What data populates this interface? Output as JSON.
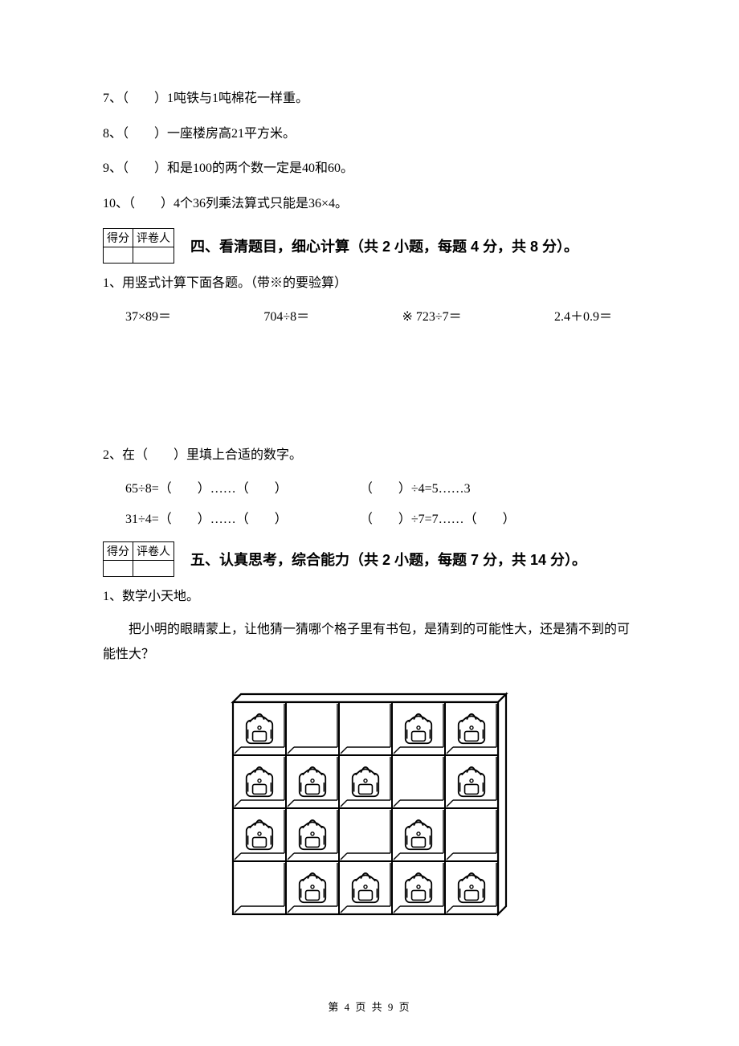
{
  "questions": {
    "q7": "7、（　　）1吨铁与1吨棉花一样重。",
    "q8": "8、（　　）一座楼房高21平方米。",
    "q9": "9、（　　）和是100的两个数一定是40和60。",
    "q10": "10、（　　）4个36列乘法算式只能是36×4。"
  },
  "score_box": {
    "col1": "得分",
    "col2": "评卷人"
  },
  "section4": {
    "title": "四、看清题目，细心计算（共 2 小题，每题 4 分，共 8 分）。",
    "item1": "1、用竖式计算下面各题。（带※的要验算）",
    "calc1": "37×89＝",
    "calc2": "704÷8＝",
    "calc3": "※ 723÷7＝",
    "calc4": "2.4＋0.9＝",
    "item2": "2、在（　　）里填上合适的数字。",
    "fill1": "65÷8=（　　）……（　　）",
    "fill2": "（　　）÷4=5……3",
    "fill3": "31÷4=（　　）……（　　）",
    "fill4": "（　　）÷7=7……（　　）"
  },
  "section5": {
    "title": "五、认真思考，综合能力（共 2 小题，每题 7 分，共 14 分）。",
    "item1": "1、数学小天地。",
    "body": "把小明的眼睛蒙上，让他猜一猜哪个格子里有书包，是猜到的可能性大，还是猜不到的可能性大？"
  },
  "grid": {
    "rows": 4,
    "cols": 5,
    "cell_size": 66,
    "stroke": "#000000",
    "stroke_width": 2.2,
    "inner_stroke_width": 2,
    "bags": [
      [
        1,
        0,
        0,
        1,
        1
      ],
      [
        1,
        1,
        1,
        0,
        1
      ],
      [
        1,
        1,
        0,
        1,
        0
      ],
      [
        0,
        1,
        1,
        1,
        1
      ]
    ]
  },
  "footer": "第 4 页 共 9 页"
}
